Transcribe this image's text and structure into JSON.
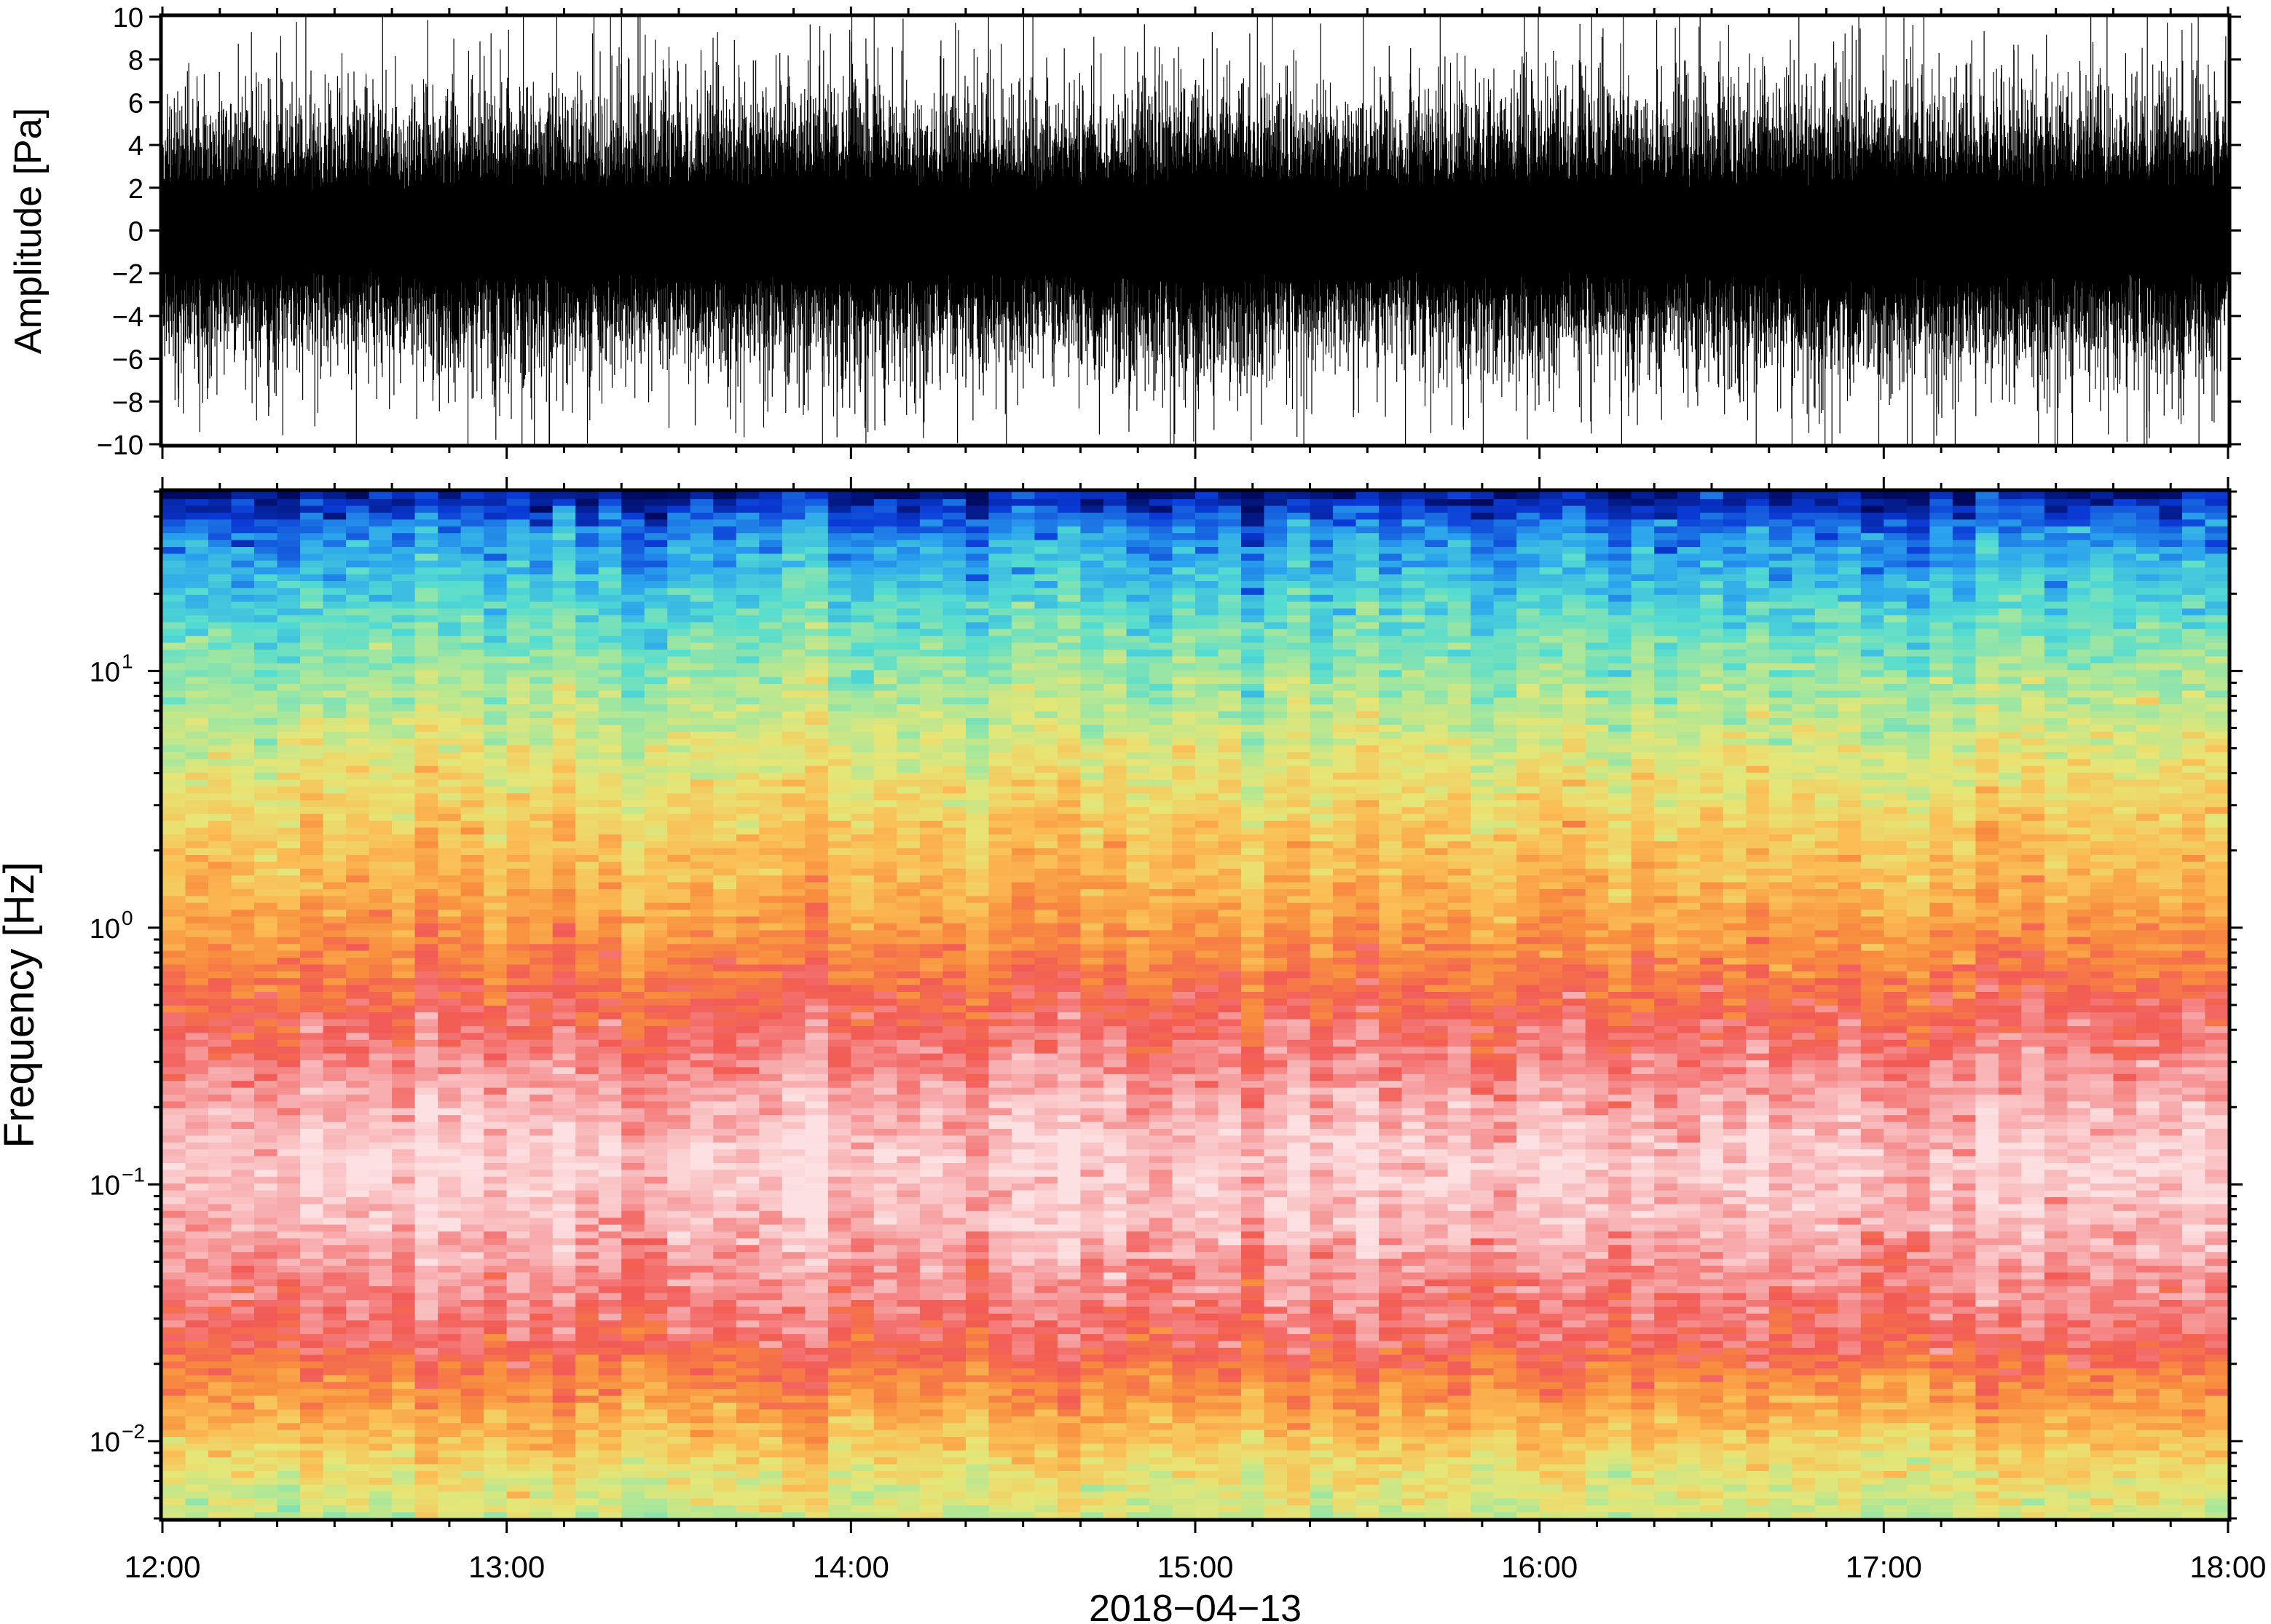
{
  "chart_data": [
    {
      "type": "line",
      "title": "",
      "xlabel": "",
      "ylabel": "Amplitude [Pa]",
      "xlim": [
        "12:00",
        "18:00"
      ],
      "ylim": [
        -10,
        10
      ],
      "yticks": [
        "10",
        "8",
        "6",
        "4",
        "2",
        "0",
        "−2",
        "−4",
        "−6",
        "−8",
        "−10"
      ],
      "ytick_values": [
        10,
        8,
        6,
        4,
        2,
        0,
        -2,
        -4,
        -6,
        -8,
        -10
      ],
      "grid": false,
      "line_color": "#000000",
      "series": [
        {
          "x": [
            "12:00",
            "12:30",
            "13:00",
            "13:30",
            "14:00",
            "14:30",
            "15:00",
            "15:30",
            "16:00",
            "16:30",
            "17:00",
            "17:30",
            "18:00"
          ],
          "envelope_abs": [
            4.2,
            4.0,
            4.6,
            4.1,
            4.7,
            3.9,
            4.8,
            4.0,
            4.5,
            4.2,
            4.8,
            4.3,
            4.4
          ]
        }
      ]
    },
    {
      "type": "heatmap",
      "title": "",
      "xlabel": "2018−04−13",
      "ylabel": "Frequency [Hz]",
      "y_scale": "log",
      "ylim": [
        0.005,
        50
      ],
      "yticks": [
        {
          "value": 0.01,
          "base": "10",
          "exp": "−2"
        },
        {
          "value": 0.1,
          "base": "10",
          "exp": "−1"
        },
        {
          "value": 1,
          "base": "10",
          "exp": "0"
        },
        {
          "value": 10,
          "base": "10",
          "exp": "1"
        }
      ],
      "x": [
        "12:00",
        "13:00",
        "14:00",
        "15:00",
        "16:00",
        "17:00",
        "18:00"
      ],
      "colormap": [
        "#000a60",
        "#0a3ad6",
        "#2aa2ee",
        "#52dcd2",
        "#a6e79c",
        "#e6e676",
        "#fbbd54",
        "#f88e3e",
        "#f25a55",
        "#f7a8aa",
        "#fde1e2"
      ],
      "band_levels": [
        {
          "freq": 0.005,
          "level": 4.6
        },
        {
          "freq": 0.008,
          "level": 5.3
        },
        {
          "freq": 0.012,
          "level": 6.3
        },
        {
          "freq": 0.018,
          "level": 7.2
        },
        {
          "freq": 0.025,
          "level": 8.1
        },
        {
          "freq": 0.04,
          "level": 8.6
        },
        {
          "freq": 0.07,
          "level": 9.3
        },
        {
          "freq": 0.12,
          "level": 9.7
        },
        {
          "freq": 0.2,
          "level": 9.2
        },
        {
          "freq": 0.35,
          "level": 8.4
        },
        {
          "freq": 0.5,
          "level": 7.9
        },
        {
          "freq": 0.8,
          "level": 7.1
        },
        {
          "freq": 1.5,
          "level": 6.2
        },
        {
          "freq": 3,
          "level": 5.5
        },
        {
          "freq": 6,
          "level": 4.6
        },
        {
          "freq": 12,
          "level": 3.6
        },
        {
          "freq": 20,
          "level": 2.8
        },
        {
          "freq": 35,
          "level": 1.8
        },
        {
          "freq": 50,
          "level": 0.3
        }
      ]
    }
  ]
}
